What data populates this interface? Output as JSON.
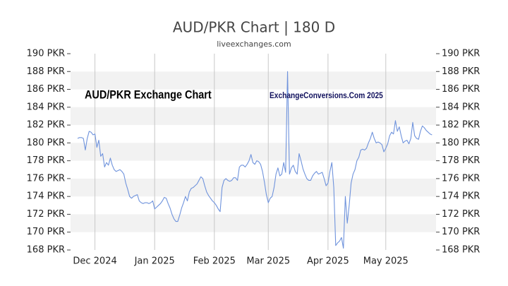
{
  "chart_data": {
    "type": "line",
    "title": "AUD/PKR Chart | 180 D",
    "subtitle": "liveexchanges.com",
    "annotations": [
      "AUD/PKR Exchange Chart",
      "ExchangeConversions.Com 2025"
    ],
    "color": "#6f93dc",
    "grid": true,
    "ylim": [
      168,
      190
    ],
    "yticks": [
      {
        "value": 168,
        "label": "168 PKR"
      },
      {
        "value": 170,
        "label": "170 PKR"
      },
      {
        "value": 172,
        "label": "172 PKR"
      },
      {
        "value": 174,
        "label": "174 PKR"
      },
      {
        "value": 176,
        "label": "176 PKR"
      },
      {
        "value": 178,
        "label": "178 PKR"
      },
      {
        "value": 180,
        "label": "180 PKR"
      },
      {
        "value": 182,
        "label": "182 PKR"
      },
      {
        "value": 184,
        "label": "184 PKR"
      },
      {
        "value": 186,
        "label": "186 PKR"
      },
      {
        "value": 188,
        "label": "188 PKR"
      },
      {
        "value": 190,
        "label": "190 PKR"
      }
    ],
    "categories": [
      null,
      null,
      null,
      null,
      null,
      null,
      null,
      null,
      null,
      "Dec 2024",
      null,
      null,
      null,
      null,
      null,
      null,
      null,
      null,
      null,
      null,
      null,
      null,
      null,
      null,
      null,
      null,
      null,
      null,
      null,
      null,
      null,
      null,
      null,
      null,
      null,
      null,
      null,
      null,
      null,
      null,
      "Jan 2025",
      null,
      null,
      null,
      null,
      null,
      null,
      null,
      null,
      null,
      null,
      null,
      null,
      null,
      null,
      null,
      null,
      null,
      null,
      null,
      null,
      null,
      null,
      null,
      null,
      null,
      null,
      null,
      null,
      null,
      null,
      "Feb 2025",
      null,
      null,
      null,
      null,
      null,
      null,
      null,
      null,
      null,
      null,
      null,
      null,
      null,
      null,
      null,
      null,
      null,
      null,
      null,
      null,
      null,
      null,
      null,
      null,
      null,
      null,
      null,
      "Mar 2025",
      null,
      null,
      null,
      null,
      null,
      null,
      null,
      null,
      null,
      null,
      null,
      null,
      null,
      null,
      null,
      null,
      null,
      null,
      null,
      null,
      null,
      null,
      null,
      null,
      null,
      null,
      null,
      null,
      null,
      null,
      "Apr 2025",
      null,
      null,
      null,
      null,
      null,
      null,
      null,
      null,
      null,
      null,
      null,
      null,
      null,
      null,
      null,
      null,
      null,
      null,
      null,
      null,
      null,
      null,
      null,
      null,
      null,
      null,
      null,
      null,
      null,
      "May 2025",
      null,
      null,
      null,
      null,
      null,
      null,
      null,
      null,
      null,
      null,
      null,
      null,
      null,
      null,
      null,
      null,
      null,
      null,
      null,
      null,
      null,
      null,
      null,
      null
    ],
    "values": [
      180.5,
      180.6,
      180.6,
      180.5,
      179.2,
      180.5,
      181.3,
      181.2,
      180.9,
      181.0,
      179.5,
      180.3,
      178.5,
      178.8,
      177.3,
      177.8,
      177.5,
      178.3,
      177.5,
      177.0,
      176.8,
      176.9,
      177.0,
      176.8,
      176.5,
      175.5,
      174.8,
      174.0,
      173.8,
      174.0,
      174.1,
      174.2,
      173.5,
      173.3,
      173.2,
      173.3,
      173.3,
      173.2,
      173.3,
      173.5,
      172.6,
      172.8,
      173.0,
      173.2,
      173.5,
      173.9,
      173.8,
      173.2,
      172.7,
      172.0,
      171.5,
      171.2,
      171.2,
      171.9,
      172.7,
      173.3,
      174.0,
      173.5,
      174.5,
      174.9,
      175.0,
      175.2,
      175.4,
      175.8,
      176.2,
      176.0,
      175.2,
      174.5,
      174.1,
      173.8,
      173.5,
      173.3,
      173.0,
      172.6,
      172.3,
      175.0,
      175.8,
      176.0,
      175.8,
      175.7,
      175.8,
      176.1,
      176.1,
      175.8,
      177.3,
      177.5,
      177.5,
      177.3,
      177.6,
      178.0,
      178.7,
      177.8,
      177.6,
      178.0,
      177.9,
      177.6,
      176.8,
      175.6,
      174.2,
      173.3,
      173.8,
      174.0,
      175.0,
      176.5,
      177.2,
      176.3,
      176.5,
      177.8,
      176.7,
      188.0,
      176.5,
      177.2,
      177.5,
      176.8,
      176.5,
      178.8,
      178.0,
      177.1,
      176.5,
      176.0,
      175.8,
      175.8,
      176.3,
      176.6,
      176.8,
      176.5,
      176.6,
      176.7,
      176.0,
      175.2,
      175.5,
      176.8,
      177.8,
      175.0,
      168.5,
      168.8,
      169.0,
      169.4,
      168.2,
      174.0,
      171.0,
      173.0,
      175.5,
      176.5,
      177.0,
      178.0,
      178.4,
      179.2,
      179.3,
      179.2,
      179.4,
      180.0,
      180.5,
      181.2,
      180.5,
      180.0,
      180.1,
      180.0,
      179.8,
      179.0,
      179.4,
      179.9,
      180.8,
      181.2,
      181.0,
      182.5,
      181.3,
      181.8,
      180.8,
      180.0,
      180.2,
      180.3,
      179.9,
      180.5,
      182.3,
      180.8,
      180.5,
      180.4,
      181.3,
      181.9,
      181.7,
      181.4,
      181.2,
      181.0,
      180.9
    ]
  }
}
